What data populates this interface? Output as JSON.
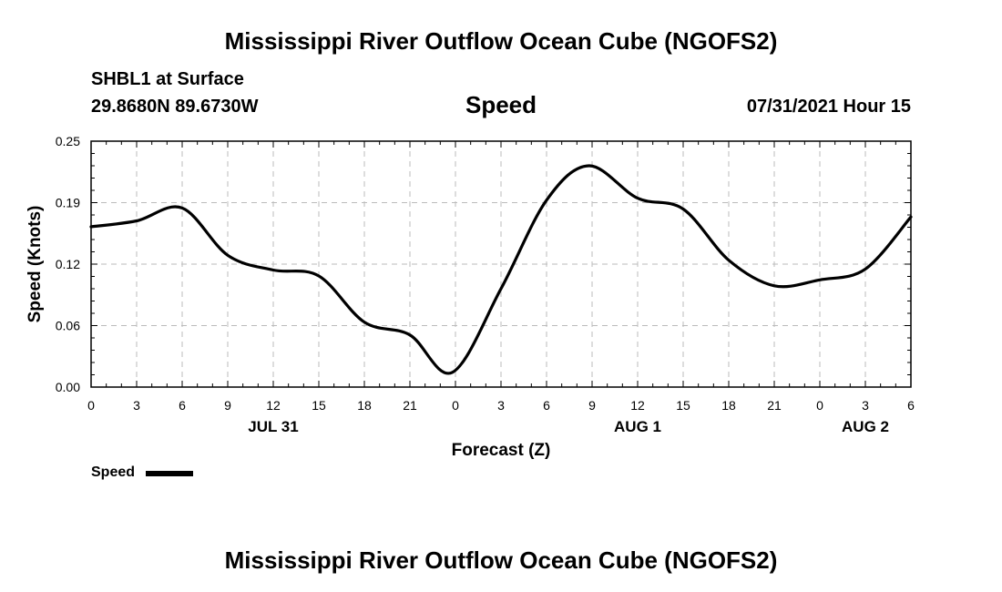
{
  "header": {
    "title": "Mississippi River Outflow Ocean Cube (NGOFS2)",
    "station": "SHBL1 at Surface",
    "coordinates": "29.8680N  89.6730W",
    "variable": "Speed",
    "datetime": "07/31/2021 Hour 15"
  },
  "footer": {
    "title": "Mississippi River Outflow Ocean Cube (NGOFS2)"
  },
  "legend": {
    "label": "Speed",
    "color": "#000000"
  },
  "chart_data": {
    "type": "line",
    "title": "Speed",
    "xlabel": "Forecast (Z)",
    "ylabel": "Speed (Knots)",
    "ylim": [
      0.0,
      0.25
    ],
    "xlim_hours": [
      0,
      54
    ],
    "grid": true,
    "legend_position": "bottom-left",
    "x_tick_labels": [
      "0",
      "3",
      "6",
      "9",
      "12",
      "15",
      "18",
      "21",
      "0",
      "3",
      "6",
      "9",
      "12",
      "15",
      "18",
      "21",
      "0",
      "3",
      "6"
    ],
    "y_tick_labels": [
      "0.00",
      "0.06",
      "0.12",
      "0.19",
      "0.25"
    ],
    "y_ticks": [
      0.0,
      0.0625,
      0.125,
      0.1875,
      0.25
    ],
    "date_labels": [
      {
        "label": "JUL 31",
        "hour": 12
      },
      {
        "label": "AUG 1",
        "hour": 36
      },
      {
        "label": "AUG 2",
        "hour": 51
      }
    ],
    "series": [
      {
        "name": "Speed",
        "color": "#000000",
        "x": [
          0,
          3,
          6,
          9,
          12,
          15,
          18,
          21,
          23.8,
          27,
          30,
          32.8,
          36,
          39,
          42,
          45,
          48,
          51,
          54
        ],
        "values": [
          0.163,
          0.169,
          0.182,
          0.134,
          0.119,
          0.113,
          0.066,
          0.053,
          0.015,
          0.1,
          0.19,
          0.225,
          0.192,
          0.181,
          0.129,
          0.103,
          0.109,
          0.12,
          0.173
        ]
      }
    ]
  }
}
